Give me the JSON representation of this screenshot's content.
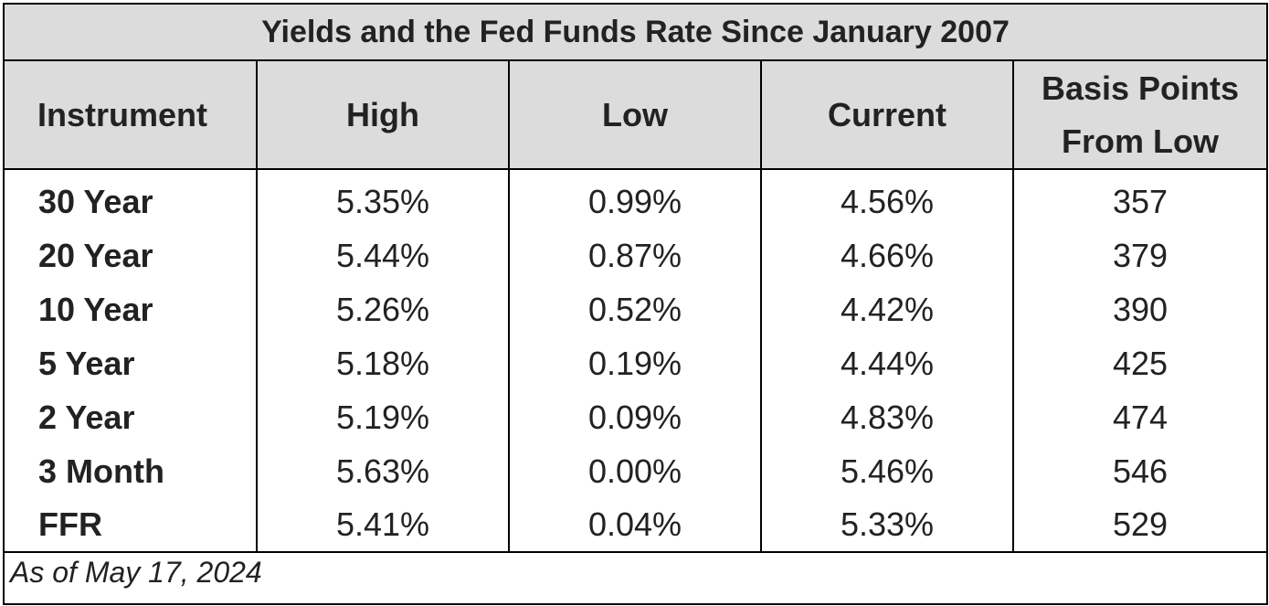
{
  "chart_data": {
    "type": "table",
    "title": "Yields and the Fed Funds Rate Since January 2007",
    "columns": [
      "Instrument",
      "High",
      "Low",
      "Current",
      "Basis Points From Low"
    ],
    "header_lines": {
      "bp_line1": "Basis Points",
      "bp_line2": "From Low"
    },
    "rows": [
      {
        "instrument": "30 Year",
        "high": "5.35%",
        "low": "0.99%",
        "current": "4.56%",
        "bp": "357"
      },
      {
        "instrument": "20 Year",
        "high": "5.44%",
        "low": "0.87%",
        "current": "4.66%",
        "bp": "379"
      },
      {
        "instrument": "10 Year",
        "high": "5.26%",
        "low": "0.52%",
        "current": "4.42%",
        "bp": "390"
      },
      {
        "instrument": "5 Year",
        "high": "5.18%",
        "low": "0.19%",
        "current": "4.44%",
        "bp": "425"
      },
      {
        "instrument": "2 Year",
        "high": "5.19%",
        "low": "0.09%",
        "current": "4.83%",
        "bp": "474"
      },
      {
        "instrument": "3 Month",
        "high": "5.63%",
        "low": "0.00%",
        "current": "5.46%",
        "bp": "546"
      },
      {
        "instrument": "FFR",
        "high": "5.41%",
        "low": "0.04%",
        "current": "5.33%",
        "bp": "529"
      }
    ],
    "footnote": "As of May 17, 2024",
    "colors": {
      "header_bg": "#dcdcdc",
      "border": "#000000",
      "text": "#222222"
    }
  }
}
